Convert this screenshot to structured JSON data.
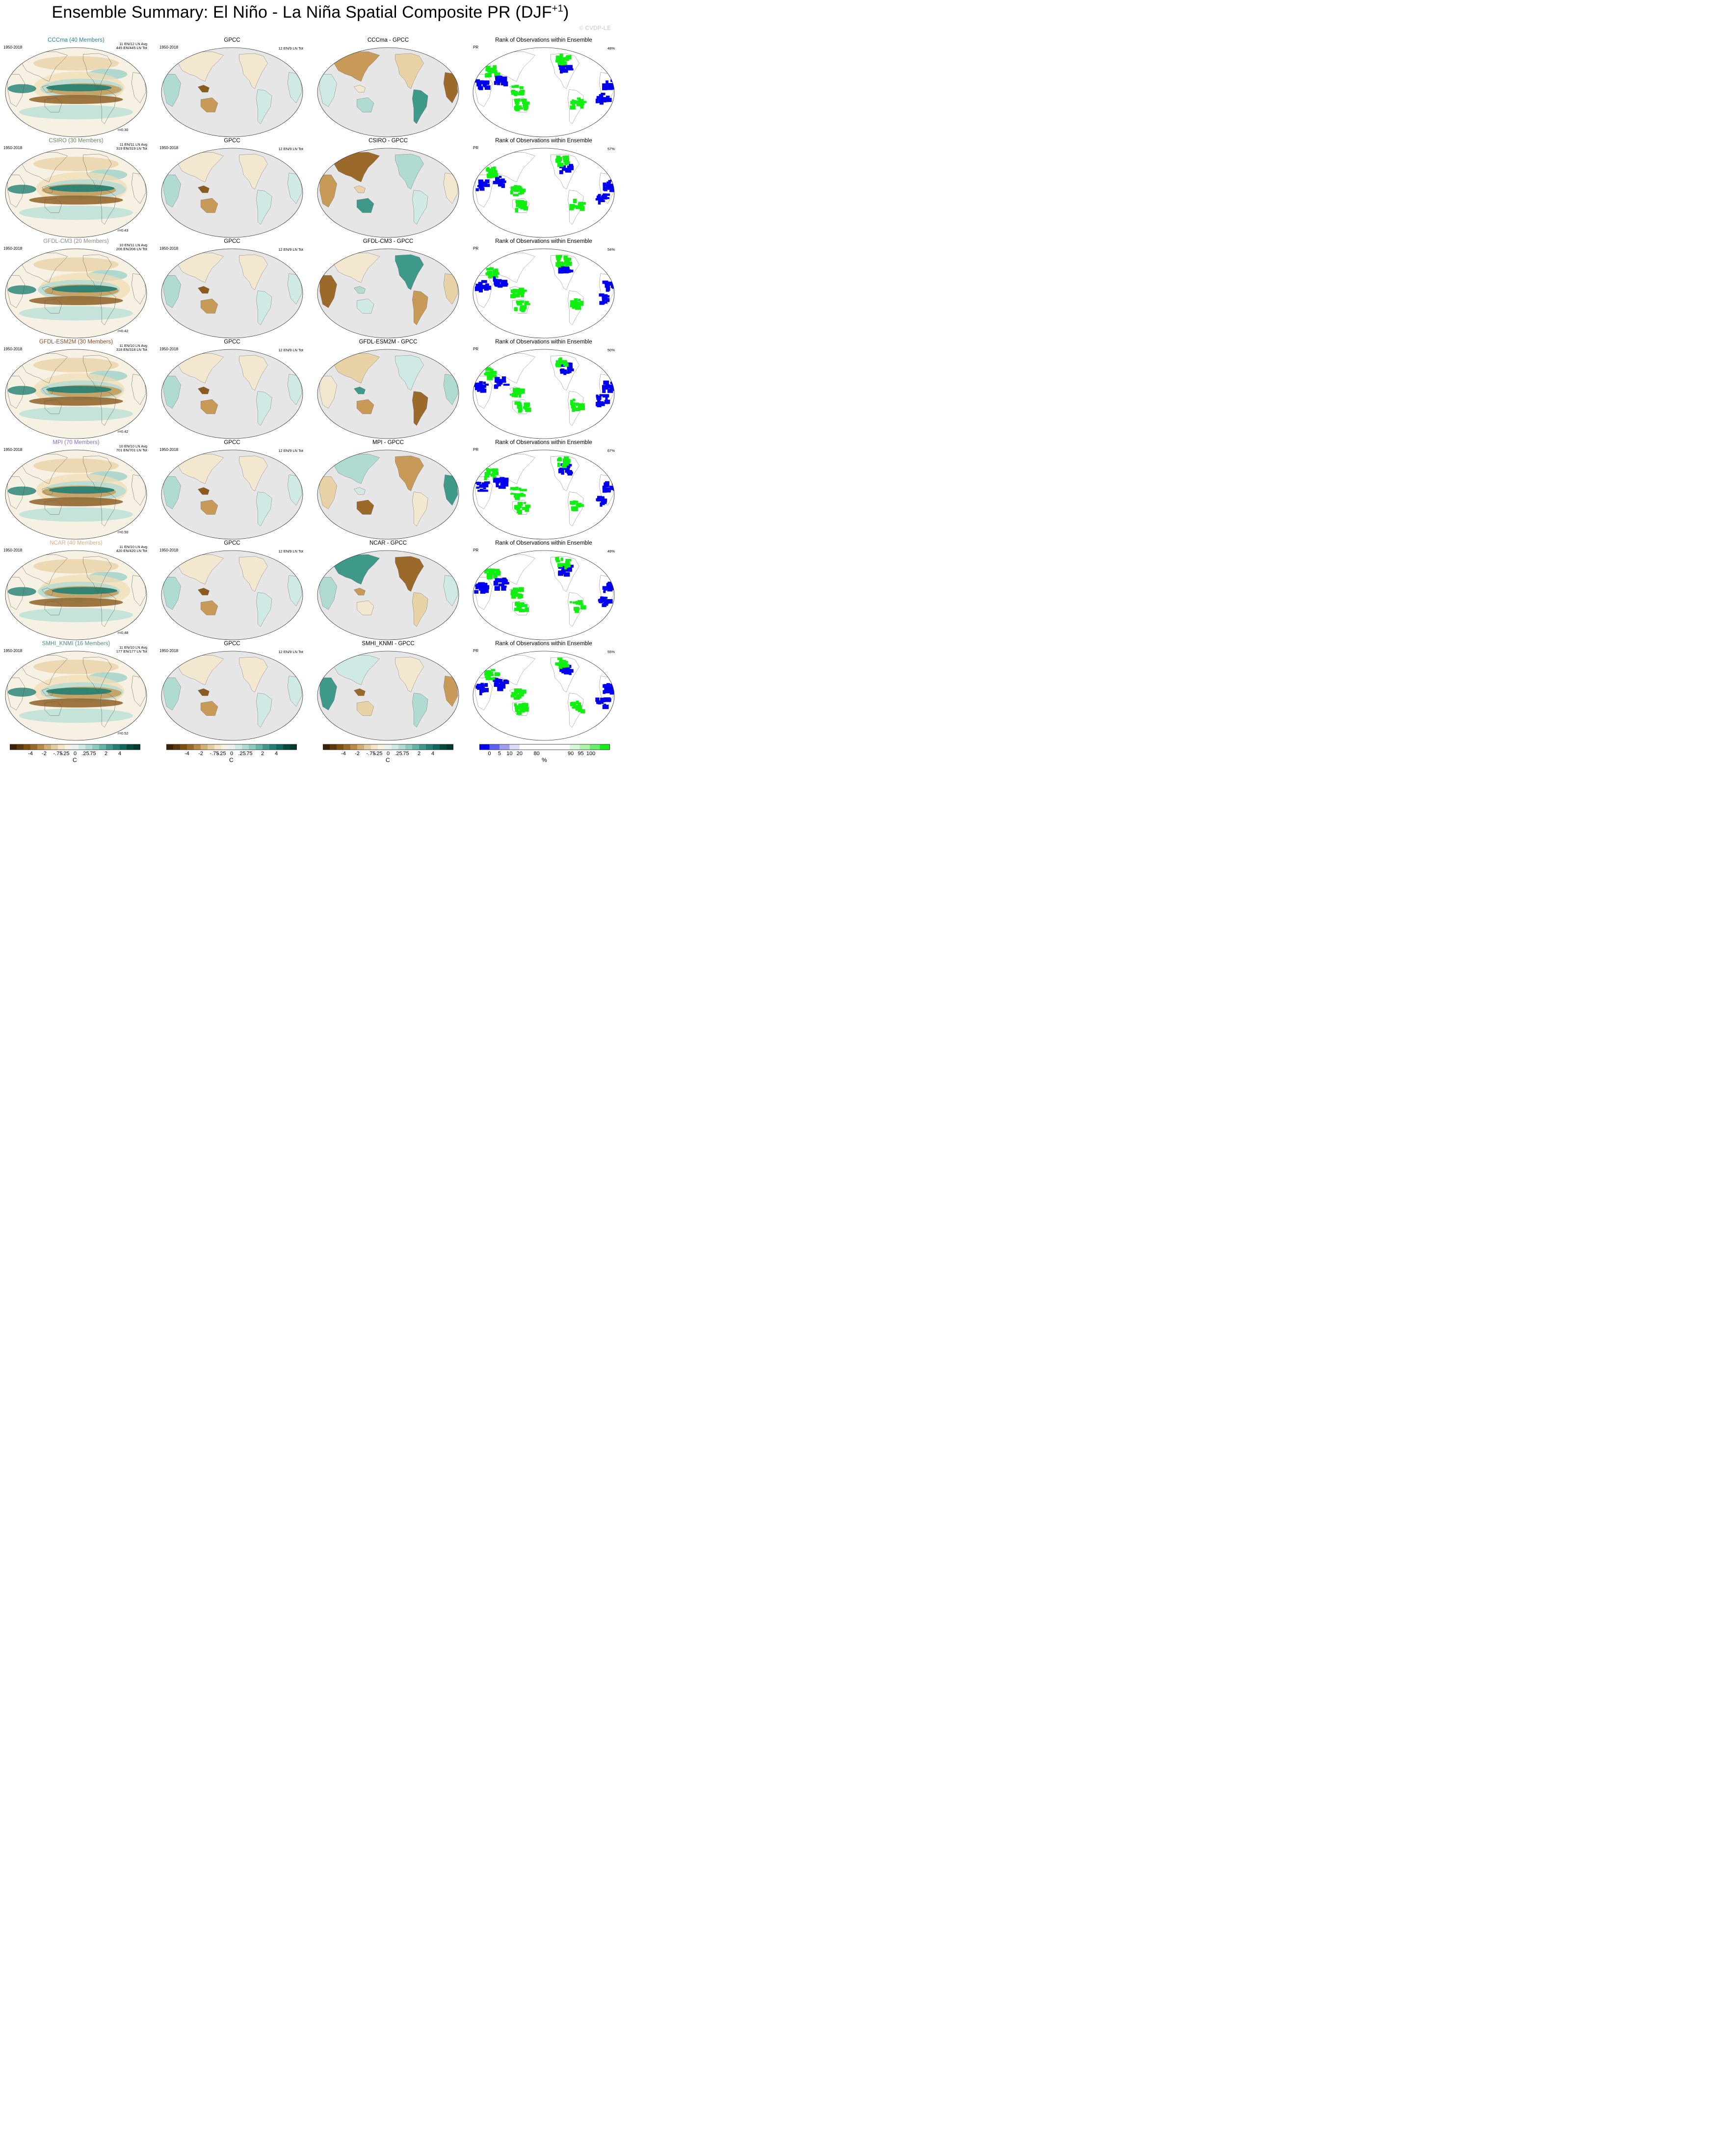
{
  "title": {
    "main": "Ensemble Summary: El Niño - La Niña Spatial Composite PR (DJF",
    "sup": "+1",
    "close": ")"
  },
  "watermark": "© CVDP-LE",
  "period": "1950-2018",
  "obs_name": "GPCC",
  "obs_info": "12 EN/9 LN Tot",
  "rank_title": "Rank of Observations within Ensemble",
  "rank_var": "PR",
  "chart_data": {
    "type": "map-panels",
    "models": [
      {
        "title": "CCCma (40 Members)",
        "color": "#2a7fa0",
        "diff_title": "CCCma - GPCC",
        "info1": "11 EN/12 LN Avg",
        "info2": "445 EN/445 LN Tot",
        "corr": "r=0.30",
        "rank_pct": "48%"
      },
      {
        "title": "CSIRO (30 Members)",
        "color": "#5f8a54",
        "diff_title": "CSIRO - GPCC",
        "info1": "11 EN/11 LN Avg",
        "info2": "319 EN/319 LN Tot",
        "corr": "r=0.43",
        "rank_pct": "57%"
      },
      {
        "title": "GFDL-CM3 (20 Members)",
        "color": "#8c8c8c",
        "diff_title": "GFDL-CM3 - GPCC",
        "info1": "10 EN/11 LN Avg",
        "info2": "206 EN/206 LN Tot",
        "corr": "r=0.42",
        "rank_pct": "54%"
      },
      {
        "title": "GFDL-ESM2M (30 Members)",
        "color": "#8b4a1c",
        "diff_title": "GFDL-ESM2M - GPCC",
        "info1": "11 EN/10 LN Avg",
        "info2": "318 EN/318 LN Tot",
        "corr": "r=0.42",
        "rank_pct": "50%"
      },
      {
        "title": "MPI (70 Members)",
        "color": "#8a6fc7",
        "diff_title": "MPI - GPCC",
        "info1": "10 EN/10 LN Avg",
        "info2": "701 EN/701 LN Tot",
        "corr": "r=0.50",
        "rank_pct": "67%"
      },
      {
        "title": "NCAR (40 Members)",
        "color": "#d8ad86",
        "diff_title": "NCAR - GPCC",
        "info1": "11 EN/10 LN Avg",
        "info2": "420 EN/420 LN Tot",
        "corr": "r=0.48",
        "rank_pct": "49%"
      },
      {
        "title": "SMHI_KNMI (16 Members)",
        "color": "#4f8d85",
        "diff_title": "SMHI_KNMI - GPCC",
        "info1": "11 EN/10 LN Avg",
        "info2": "177 EN/177 LN Tot",
        "corr": "r=0.52",
        "rank_pct": "55%"
      }
    ],
    "colorbars": {
      "diverging": {
        "labels": [
          "-4",
          "-2",
          "-.75",
          "-.25",
          "0",
          ".25",
          ".75",
          "2",
          "4"
        ],
        "unit": "C",
        "colors": [
          "#3d2306",
          "#5c3709",
          "#7d4e14",
          "#9b6a2b",
          "#b98a4b",
          "#d2ad74",
          "#e6cd9d",
          "#f3e4c3",
          "#f8f2e2",
          "#e8f3f1",
          "#cfe9e5",
          "#b0dbd3",
          "#8ccac0",
          "#63b3a6",
          "#3f998b",
          "#218073",
          "#0e675c",
          "#02493f",
          "#003a2f"
        ]
      },
      "rank": {
        "labels": [
          "0",
          "5",
          "10",
          "20",
          "80",
          "90",
          "95",
          "100"
        ],
        "unit": "%",
        "colors": [
          "#0000ee",
          "#5e5ef0",
          "#9e9ef0",
          "#dcdcf6",
          "#ffffff",
          "#ffffff",
          "#ffffff",
          "#ffffff",
          "#ffffff",
          "#d9f8d9",
          "#a8f5a8",
          "#66ee66",
          "#11ee11"
        ]
      }
    }
  }
}
